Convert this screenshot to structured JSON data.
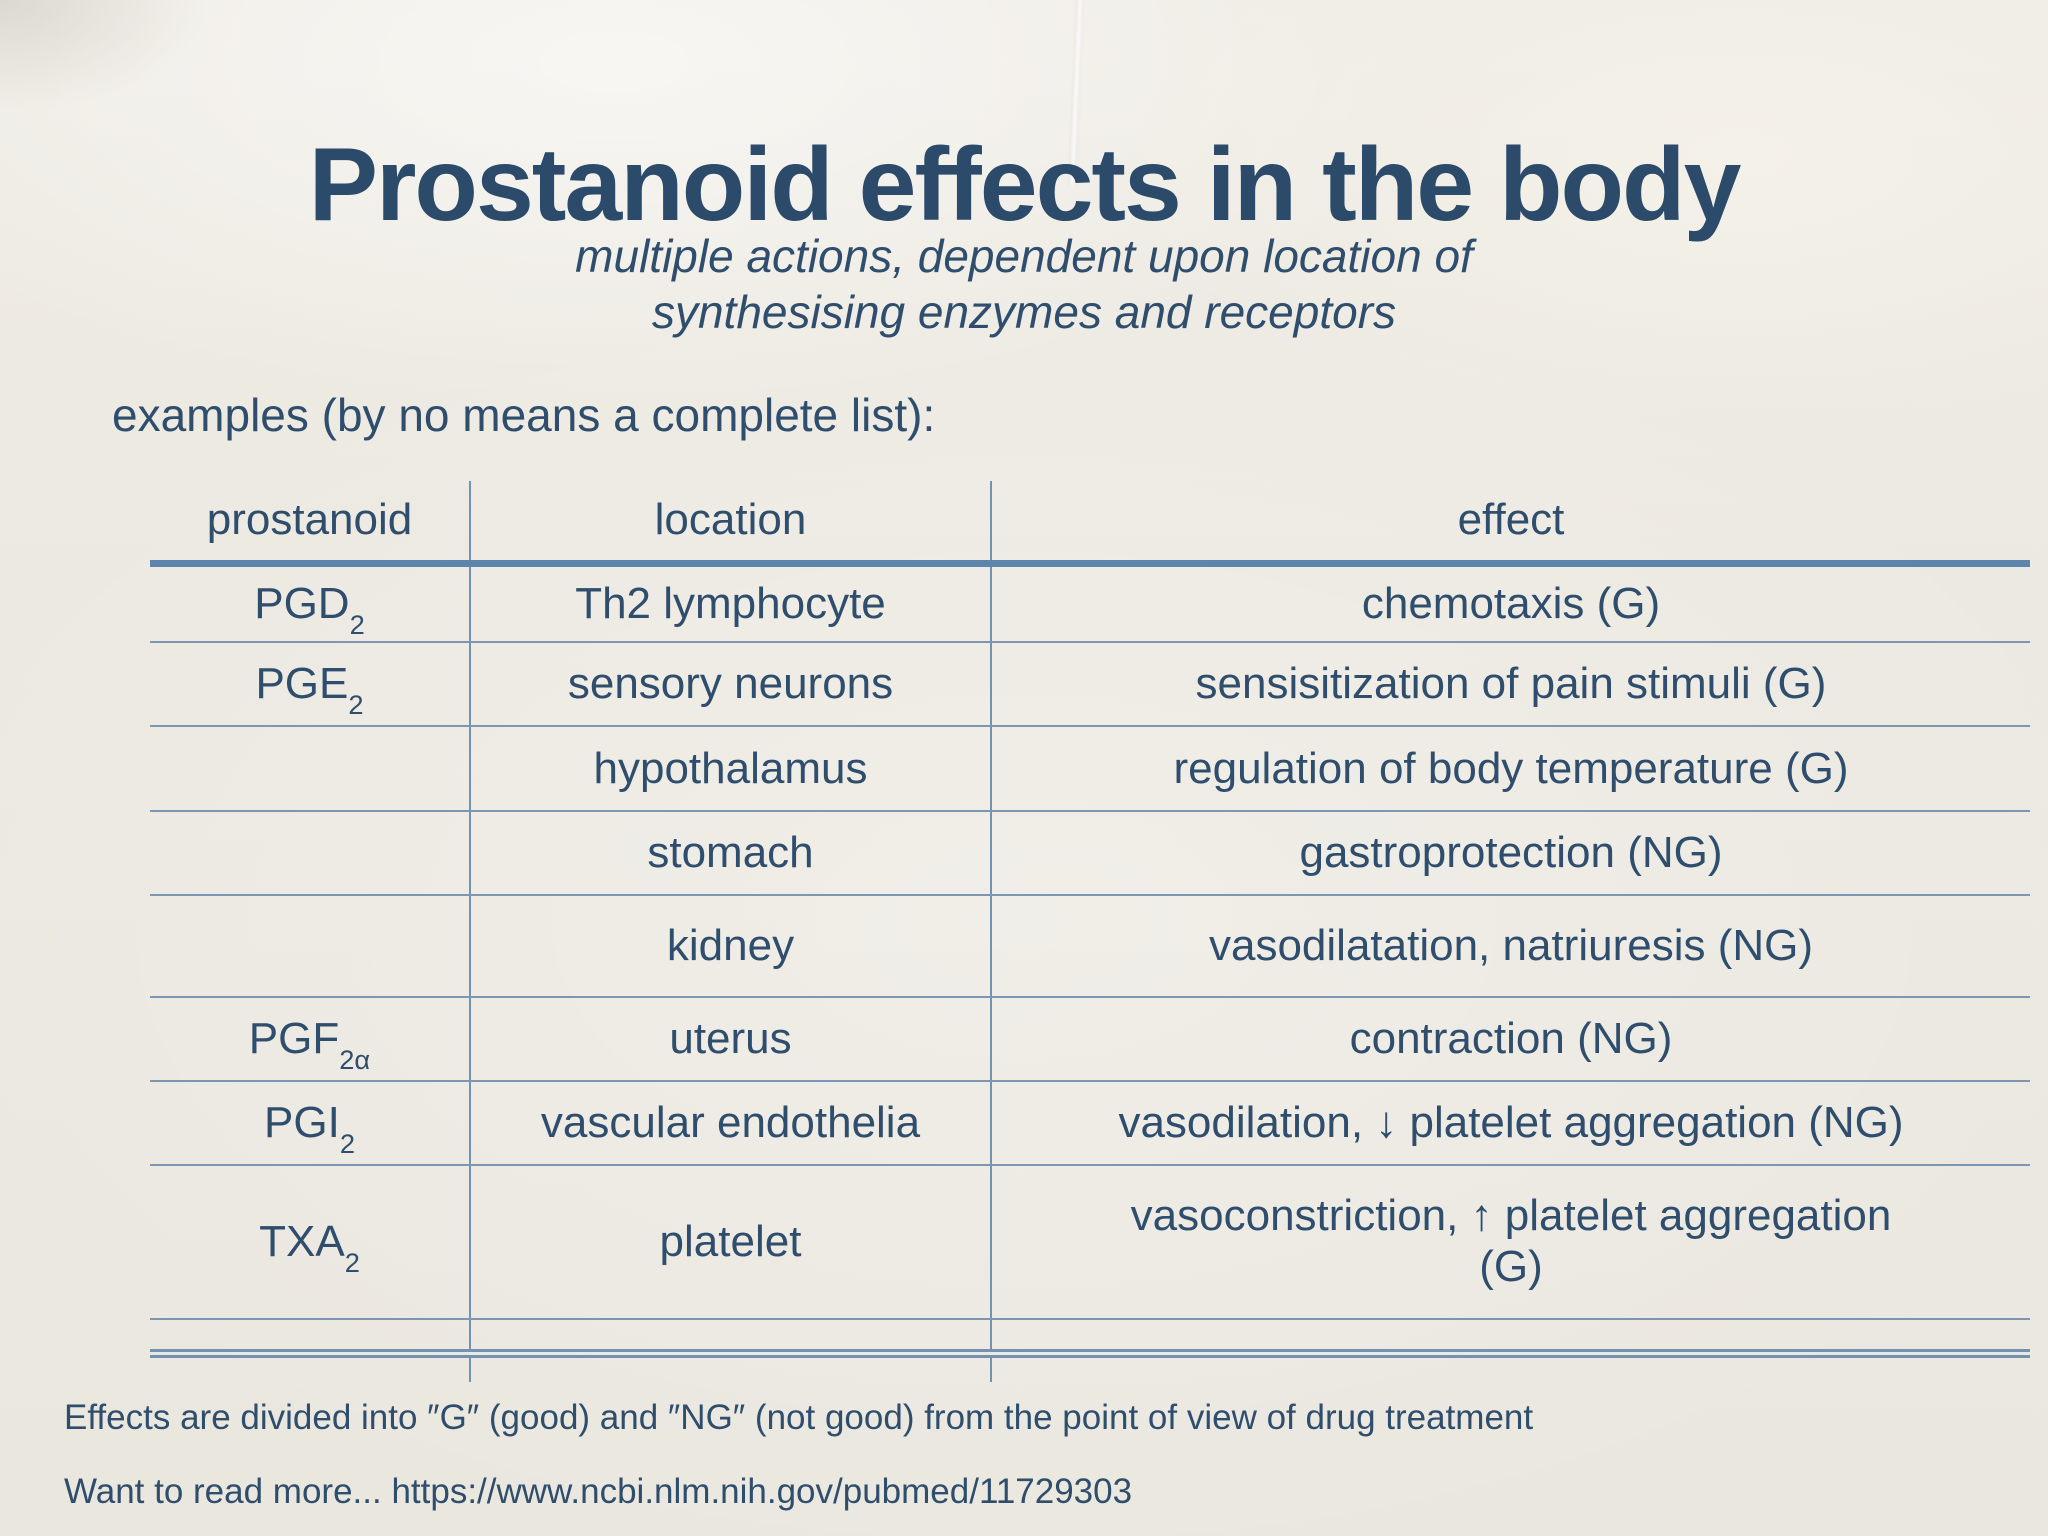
{
  "slide": {
    "title": "Prostanoid effects in the body",
    "subtitle_line1": "multiple actions, dependent upon location of",
    "subtitle_line2": "synthesising enzymes and receptors",
    "examples_label": "examples (by no means a complete list):",
    "footnote": "Effects are divided into ″G″ (good) and ″NG″ (not good) from the point of view of drug treatment",
    "read_more": "Want to read more... https://www.ncbi.nlm.nih.gov/pubmed/11729303"
  },
  "colors": {
    "text": "#2f4d6c",
    "table_line": "#7391b0",
    "header_rule": "#5d85ac",
    "background": "#ece9e1"
  },
  "table": {
    "columns": [
      "prostanoid",
      "location",
      "effect"
    ],
    "rows": [
      {
        "prostanoid_base": "PGD",
        "prostanoid_sub": "2",
        "location": "Th2 lymphocyte",
        "effect": "chemotaxis (G)"
      },
      {
        "prostanoid_base": "PGE",
        "prostanoid_sub": "2",
        "location": "sensory neurons",
        "effect": "sensisitization of pain stimuli (G)"
      },
      {
        "prostanoid_base": "",
        "prostanoid_sub": "",
        "location": "hypothalamus",
        "effect": "regulation of body temperature (G)"
      },
      {
        "prostanoid_base": "",
        "prostanoid_sub": "",
        "location": "stomach",
        "effect": "gastroprotection (NG)"
      },
      {
        "prostanoid_base": "",
        "prostanoid_sub": "",
        "location": "kidney",
        "effect": "vasodilatation, natriuresis (NG)"
      },
      {
        "prostanoid_base": "PGF",
        "prostanoid_sub": "2α",
        "location": "uterus",
        "effect": "contraction (NG)"
      },
      {
        "prostanoid_base": "PGI",
        "prostanoid_sub": "2",
        "location": "vascular endothelia",
        "effect": "vasodilation, ↓ platelet aggregation (NG)"
      },
      {
        "prostanoid_base": "TXA",
        "prostanoid_sub": "2",
        "location": "platelet",
        "effect": "vasoconstriction, ↑ platelet aggregation",
        "effect_line2": "(G)"
      }
    ]
  }
}
